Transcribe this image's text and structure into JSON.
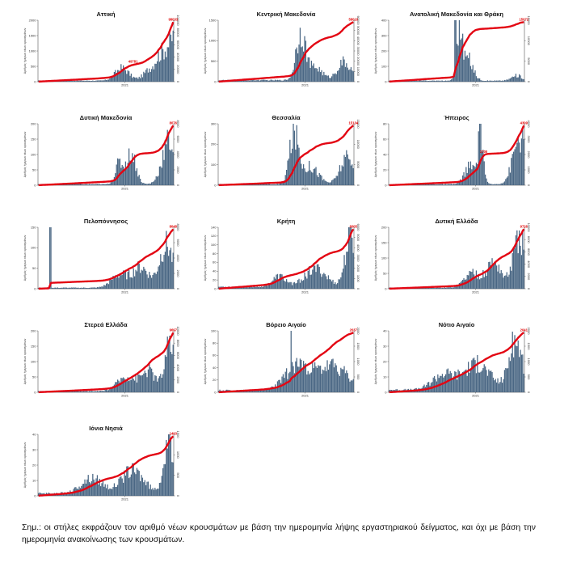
{
  "colors": {
    "bars": "#4a6784",
    "line": "#e30613",
    "axis": "#333333"
  },
  "shared": {
    "x_tick_label": "2021",
    "y_axis_label": "Αριθμός ήμερων νέων κρουσμάτων",
    "line_axis_label": "Αθροιστικά κρουσμάτων"
  },
  "note": "Σημ.: οι στήλες εκφράζουν τον αριθμό νέων κρουσμάτων με βάση την ημερομηνία λήψης εργαστηριακού δείγματος, και όχι με βάση την ημερομηνία ανακοίνωσης των κρουσμάτων.",
  "chart_data": [
    {
      "type": "bar+line",
      "title": "Αττική",
      "left_ticks": [
        "0",
        "500",
        "1000",
        "1500",
        "2000"
      ],
      "right_ticks": [
        "0",
        "20000",
        "40000",
        "60000",
        "80000",
        "100000"
      ],
      "y_max": 2000,
      "cum_max": 100000,
      "last_label": "98033",
      "mid_label": "49781",
      "profile": "attiki"
    },
    {
      "type": "bar+line",
      "title": "Κεντρική Μακεδονία",
      "left_ticks": [
        "0",
        "500",
        "1000",
        "1500"
      ],
      "right_ticks": [
        "0",
        "10000",
        "20000",
        "30000",
        "40000",
        "50000",
        "60000"
      ],
      "y_max": 1500,
      "cum_max": 60000,
      "last_label": "58010",
      "mid_label": "",
      "profile": "kmak"
    },
    {
      "type": "bar+line",
      "title": "Ανατολική Μακεδονία και Θράκη",
      "left_ticks": [
        "0",
        "100",
        "200",
        "300",
        "400"
      ],
      "right_ticks": [
        "0",
        "5000",
        "10000",
        "15000"
      ],
      "y_max": 400,
      "cum_max": 15000,
      "last_label": "15072",
      "mid_label": "",
      "profile": "amth"
    },
    {
      "type": "bar+line",
      "title": "Δυτική Μακεδονία",
      "left_ticks": [
        "0",
        "50",
        "100",
        "150",
        "200"
      ],
      "right_ticks": [
        "0",
        "2000",
        "4000",
        "6000",
        "8000"
      ],
      "y_max": 200,
      "cum_max": 8000,
      "last_label": "8076",
      "mid_label": "",
      "profile": "dmak"
    },
    {
      "type": "bar+line",
      "title": "Θεσσαλία",
      "left_ticks": [
        "0",
        "100",
        "200",
        "300"
      ],
      "right_ticks": [
        "0",
        "5000",
        "10000",
        "15000"
      ],
      "y_max": 300,
      "cum_max": 15000,
      "last_label": "15134",
      "mid_label": "",
      "profile": "thess"
    },
    {
      "type": "bar+line",
      "title": "Ήπειρος",
      "left_ticks": [
        "0",
        "20",
        "40",
        "60",
        "80"
      ],
      "right_ticks": [
        "0",
        "1000",
        "2000",
        "3000",
        "4000"
      ],
      "y_max": 80,
      "cum_max": 4000,
      "last_label": "4309",
      "mid_label": "2700",
      "profile": "ipeiros"
    },
    {
      "type": "bar+line",
      "title": "Πελοπόννησος",
      "left_ticks": [
        "0",
        "50",
        "100",
        "150"
      ],
      "right_ticks": [
        "0",
        "2000",
        "4000",
        "6000",
        "8000"
      ],
      "y_max": 150,
      "cum_max": 8000,
      "last_label": "8048",
      "mid_label": "",
      "profile": "pelop"
    },
    {
      "type": "bar+line",
      "title": "Κρήτη",
      "left_ticks": [
        "0",
        "20",
        "40",
        "60",
        "80",
        "100",
        "120",
        "140"
      ],
      "right_ticks": [
        "0",
        "1000",
        "2000",
        "3000",
        "4000",
        "5000",
        "6000"
      ],
      "y_max": 140,
      "cum_max": 6000,
      "last_label": "6005",
      "mid_label": "",
      "profile": "kriti"
    },
    {
      "type": "bar+line",
      "title": "Δυτική Ελλάδα",
      "left_ticks": [
        "0",
        "50",
        "100",
        "150",
        "200"
      ],
      "right_ticks": [
        "0",
        "2000",
        "4000",
        "6000",
        "8000",
        "10000"
      ],
      "y_max": 200,
      "cum_max": 10000,
      "last_label": "9726",
      "mid_label": "",
      "profile": "dell"
    },
    {
      "type": "bar+line",
      "title": "Στερεά Ελλάδα",
      "left_ticks": [
        "0",
        "50",
        "100",
        "150",
        "200"
      ],
      "right_ticks": [
        "0",
        "2000",
        "4000",
        "6000",
        "8000",
        "10000"
      ],
      "y_max": 200,
      "cum_max": 10000,
      "last_label": "9697",
      "mid_label": "",
      "profile": "sterea"
    },
    {
      "type": "bar+line",
      "title": "Βόρειο Αιγαίο",
      "left_ticks": [
        "0",
        "20",
        "40",
        "60",
        "80",
        "100"
      ],
      "right_ticks": [
        "0",
        "500",
        "1000",
        "1500",
        "2000"
      ],
      "y_max": 100,
      "cum_max": 2000,
      "last_label": "2037",
      "mid_label": "",
      "profile": "vaig"
    },
    {
      "type": "bar+line",
      "title": "Νότιο Αιγαίο",
      "left_ticks": [
        "0",
        "10",
        "20",
        "30",
        "40"
      ],
      "right_ticks": [
        "0",
        "500",
        "1000",
        "1500",
        "2000"
      ],
      "y_max": 40,
      "cum_max": 2000,
      "last_label": "2041",
      "mid_label": "",
      "profile": "naig"
    },
    {
      "type": "bar+line",
      "title": "Ιόνια Νησιά",
      "left_ticks": [
        "0",
        "10",
        "20",
        "30",
        "40"
      ],
      "right_ticks": [
        "0",
        "500",
        "1000",
        "1500"
      ],
      "y_max": 40,
      "cum_max": 1500,
      "last_label": "1493",
      "mid_label": "",
      "profile": "ionia"
    }
  ]
}
